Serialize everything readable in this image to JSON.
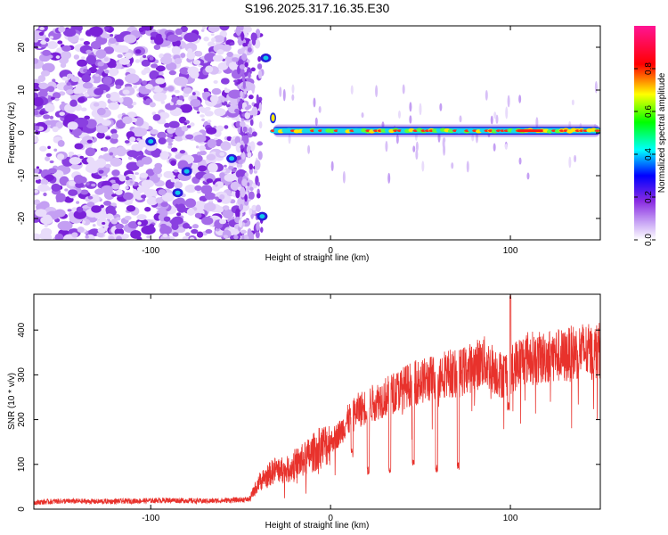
{
  "title": "S196.2025.317.16.35.E30",
  "chart_data": [
    {
      "type": "heatmap",
      "title": "S196.2025.317.16.35.E30",
      "xlabel": "Height of straight line (km)",
      "ylabel": "Frequency (Hz)",
      "xlim": [
        -165,
        150
      ],
      "ylim": [
        -25,
        25
      ],
      "xticks": [
        -100,
        0,
        100
      ],
      "yticks": [
        20,
        10,
        0,
        -10,
        -20
      ],
      "colorbar": {
        "label": "Normalized spectral amplitude",
        "range": [
          0,
          1
        ],
        "ticks": [
          "0.0",
          "0.2",
          "0.4",
          "0.6",
          "0.8"
        ],
        "colors": [
          "#ffffff",
          "#a020f0",
          "#0000ff",
          "#00ffff",
          "#00ff00",
          "#ffff00",
          "#ff0000",
          "#ff00ff"
        ]
      },
      "signal_line": {
        "start_height_km": -32,
        "end_height_km": 150,
        "frequency_hz": 0.5,
        "peak_amplitude": 0.85
      }
    },
    {
      "type": "line",
      "xlabel": "Height of straight line (km)",
      "ylabel": "SNR (10 * v/v)",
      "xlim": [
        -165,
        150
      ],
      "ylim": [
        0,
        480
      ],
      "xticks": [
        -100,
        0,
        100
      ],
      "yticks": [
        0,
        100,
        200,
        300,
        400
      ],
      "series": [
        {
          "name": "SNR",
          "color": "#e8322c",
          "x": [
            -165,
            -150,
            -130,
            -110,
            -90,
            -70,
            -55,
            -45,
            -40,
            -35,
            -30,
            -25,
            -20,
            -15,
            -10,
            -5,
            0,
            5,
            10,
            15,
            20,
            25,
            30,
            35,
            40,
            45,
            50,
            55,
            60,
            65,
            70,
            75,
            80,
            85,
            90,
            95,
            100,
            105,
            110,
            115,
            120,
            125,
            130,
            135,
            140,
            145,
            150
          ],
          "values": [
            15,
            18,
            17,
            18,
            20,
            18,
            20,
            22,
            60,
            75,
            90,
            85,
            100,
            110,
            125,
            140,
            150,
            170,
            200,
            220,
            230,
            240,
            250,
            260,
            270,
            280,
            285,
            290,
            300,
            305,
            300,
            310,
            320,
            330,
            315,
            300,
            310,
            330,
            340,
            335,
            340,
            345,
            340,
            350,
            355,
            350,
            355
          ]
        }
      ],
      "dropouts": [
        {
          "x": 12,
          "value": 115
        },
        {
          "x": 21,
          "value": 75
        },
        {
          "x": 33,
          "value": 80
        },
        {
          "x": 46,
          "value": 90
        },
        {
          "x": 59,
          "value": 80
        },
        {
          "x": 71,
          "value": 85
        },
        {
          "x": 99,
          "value": 220
        }
      ],
      "spike": {
        "x": 100,
        "value": 470
      }
    }
  ]
}
